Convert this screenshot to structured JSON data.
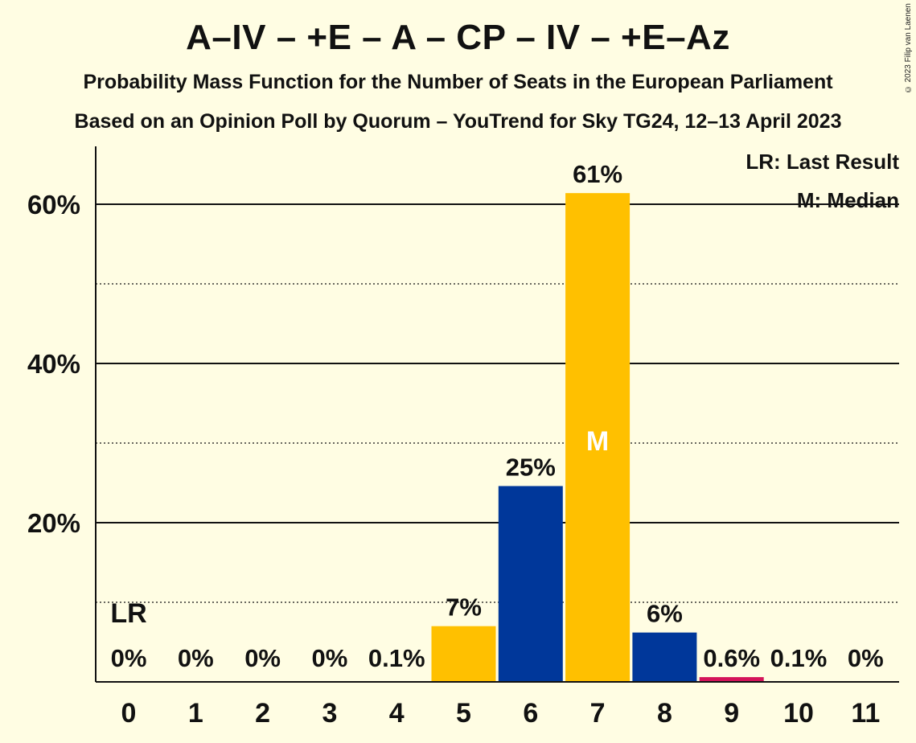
{
  "title": "A–IV – +E – A – CP – IV – +E–Az",
  "subtitle1": "Probability Mass Function for the Number of Seats in the European Parliament",
  "subtitle2": "Based on an Opinion Poll by Quorum – YouTrend for Sky TG24, 12–13 April 2023",
  "copyright": "© 2023 Filip van Laenen",
  "legend": {
    "last_result": "LR: Last Result",
    "median": "M: Median"
  },
  "colors": {
    "background": "#fffde3",
    "blue": "#00379a",
    "yellow": "#ffc000",
    "pink": "#d4145a"
  },
  "chart_data": {
    "type": "bar",
    "categories": [
      "0",
      "1",
      "2",
      "3",
      "4",
      "5",
      "6",
      "7",
      "8",
      "9",
      "10",
      "11"
    ],
    "values": [
      0,
      0,
      0,
      0,
      0.1,
      7,
      24.6,
      61.4,
      6.2,
      0.6,
      0.1,
      0
    ],
    "labels": [
      "0%",
      "0%",
      "0%",
      "0%",
      "0.1%",
      "7%",
      "25%",
      "61%",
      "6%",
      "0.6%",
      "0.1%",
      "0%"
    ],
    "bar_colors": [
      "yellow",
      "blue",
      "yellow",
      "blue",
      "yellow",
      "yellow",
      "blue",
      "yellow",
      "blue",
      "pink",
      "blue",
      "yellow"
    ],
    "y_ticks": [
      20,
      40,
      60
    ],
    "y_tick_labels": [
      "20%",
      "40%",
      "60%"
    ],
    "ylim": [
      0,
      67
    ],
    "last_result_category": "0",
    "last_result_label": "LR",
    "median_category": "7",
    "median_label": "M",
    "grid": "solid at 20% steps, dotted at 10% steps"
  }
}
